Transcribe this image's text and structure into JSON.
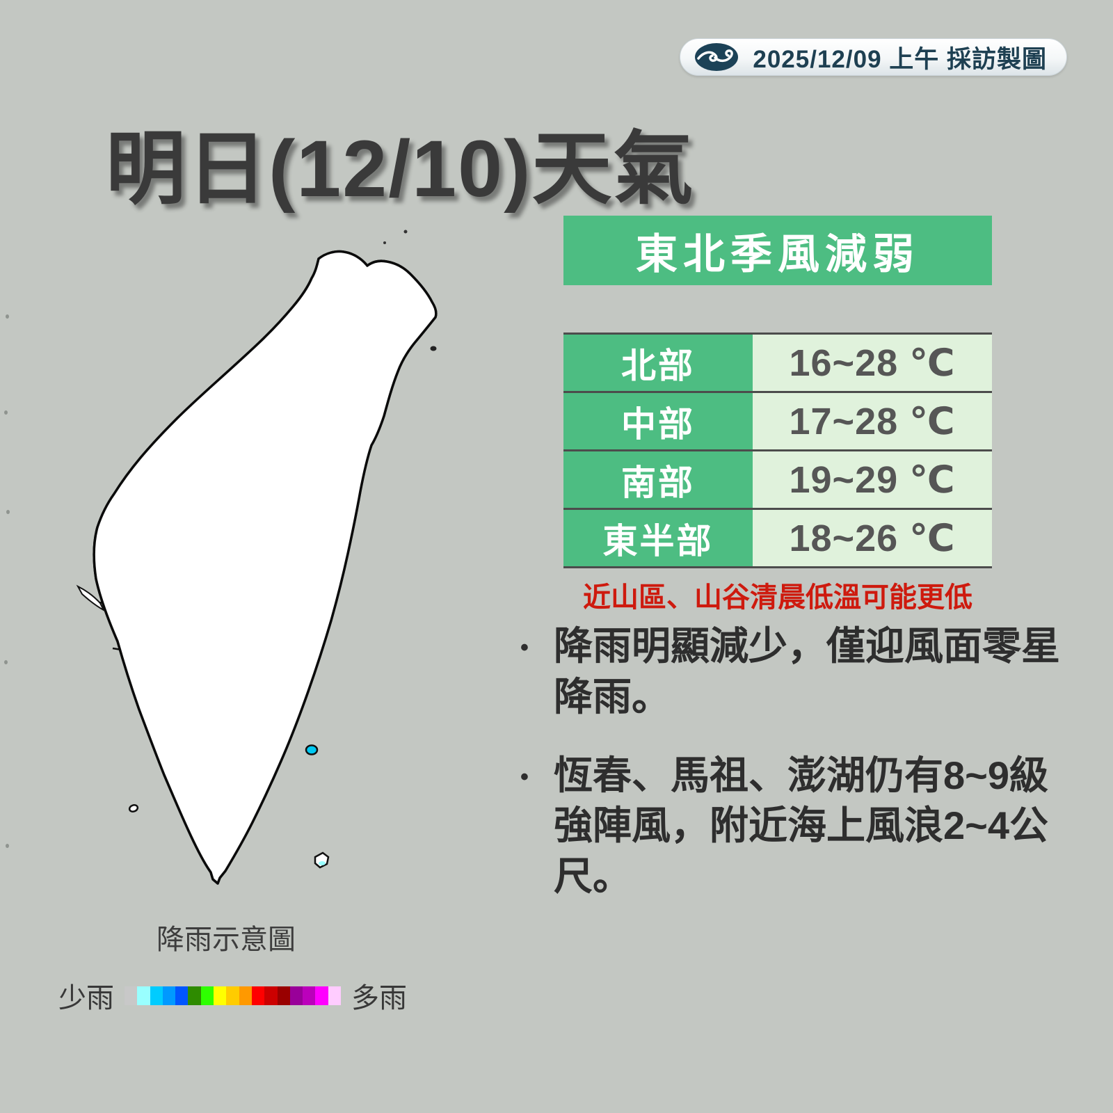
{
  "page": {
    "background": "#c3c7c2"
  },
  "badge": {
    "date_label": "2025/12/09 上午 採訪製圖"
  },
  "title": "明日(12/10)天氣",
  "panel": {
    "header": "東北季風減弱",
    "table": {
      "rows": [
        {
          "region": "北部",
          "temp": "16~28 ℃"
        },
        {
          "region": "中部",
          "temp": "17~28 ℃"
        },
        {
          "region": "南部",
          "temp": "19~29 ℃"
        },
        {
          "region": "東半部",
          "temp": "18~26 ℃"
        }
      ]
    },
    "note": "近山區、山谷清晨低溫可能更低",
    "bullet_marker": "•",
    "bullets": [
      "降雨明顯減少，僅迎風面零星降雨。",
      "恆春、馬祖、澎湖仍有8~9級強陣風，附近海上風浪2~4公尺。"
    ]
  },
  "legend": {
    "title": "降雨示意圖",
    "less_label": "少雨",
    "more_label": "多雨",
    "colors": [
      "#c8c8c8",
      "#99ffff",
      "#00ccff",
      "#0099ff",
      "#0055ff",
      "#2e8b00",
      "#2eff00",
      "#ffff00",
      "#ffcc00",
      "#ff9900",
      "#ff0000",
      "#cc0000",
      "#990000",
      "#990099",
      "#bb00bb",
      "#ff00ff",
      "#ffccff"
    ]
  },
  "map": {
    "rain_colors": {
      "trace": "#c6c6c6",
      "light": "#99ffff",
      "moderate": "#00c9f2"
    },
    "land_color": "#ffffff",
    "border_color": "#0b0b0b"
  },
  "theme": {
    "green": "#4dbd82",
    "light_green": "#e0f2dc",
    "note_red": "#ce1a0e",
    "badge_navy": "#1c4257"
  }
}
